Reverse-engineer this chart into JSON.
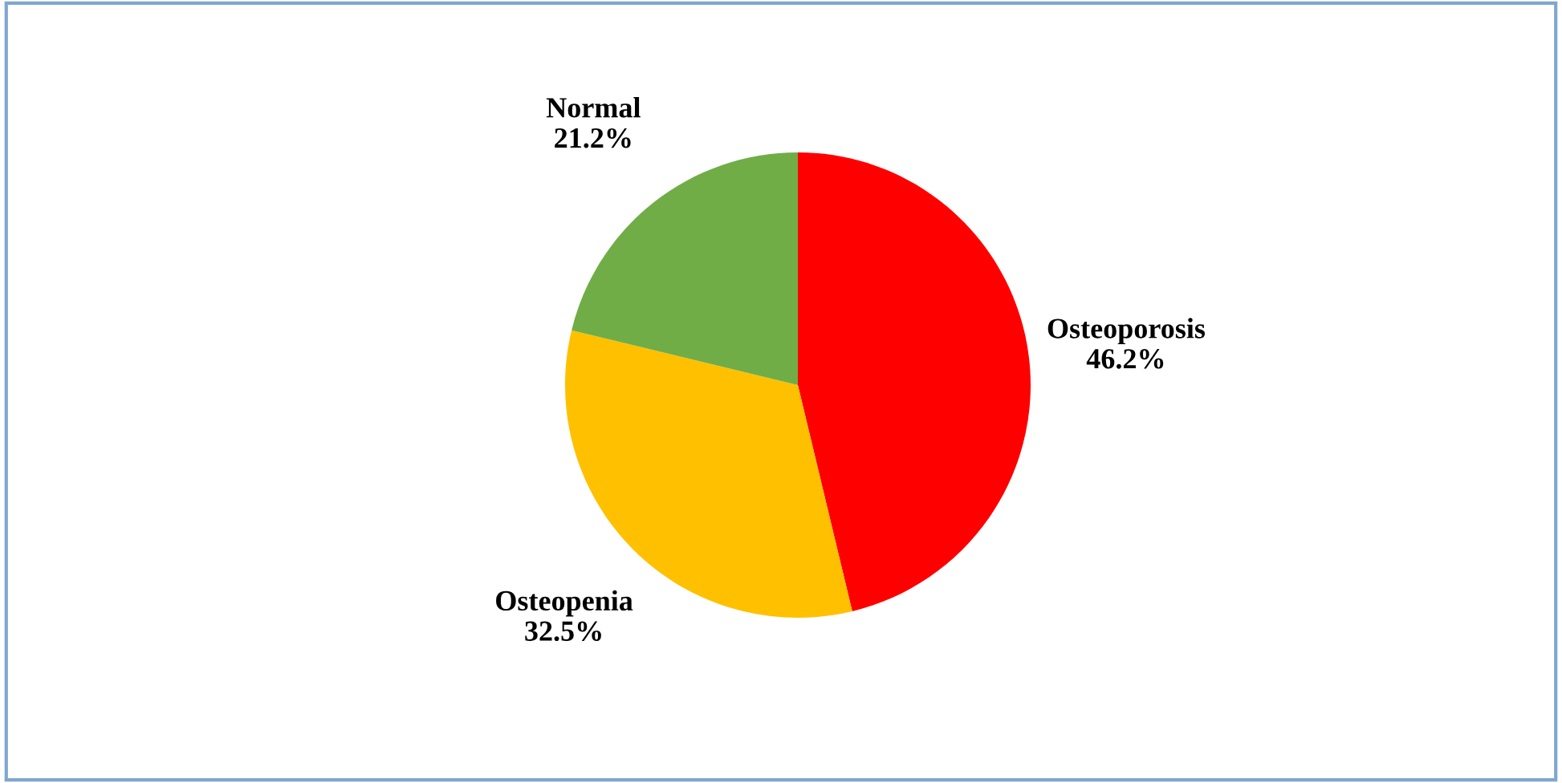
{
  "chart_data": {
    "type": "pie",
    "categories": [
      "Osteoporosis",
      "Osteopenia",
      "Normal"
    ],
    "values": [
      46.2,
      32.5,
      21.2
    ],
    "value_labels": [
      "46.2%",
      "32.5%",
      "21.2%"
    ],
    "colors": [
      "#ff0000",
      "#ffc000",
      "#70ad47"
    ],
    "legend": false
  }
}
